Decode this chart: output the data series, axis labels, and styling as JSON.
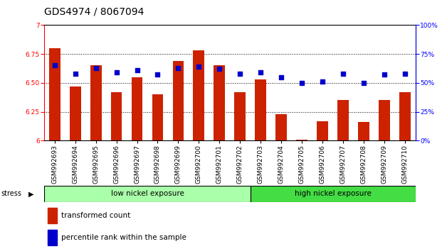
{
  "title": "GDS4974 / 8067094",
  "samples": [
    "GSM992693",
    "GSM992694",
    "GSM992695",
    "GSM992696",
    "GSM992697",
    "GSM992698",
    "GSM992699",
    "GSM992700",
    "GSM992701",
    "GSM992702",
    "GSM992703",
    "GSM992704",
    "GSM992705",
    "GSM992706",
    "GSM992707",
    "GSM992708",
    "GSM992709",
    "GSM992710"
  ],
  "bar_values": [
    6.8,
    6.47,
    6.65,
    6.42,
    6.55,
    6.4,
    6.69,
    6.78,
    6.65,
    6.42,
    6.53,
    6.23,
    6.01,
    6.17,
    6.35,
    6.16,
    6.35,
    6.42
  ],
  "percentile_values": [
    65,
    58,
    63,
    59,
    61,
    57,
    63,
    64,
    62,
    58,
    59,
    55,
    50,
    51,
    58,
    50,
    57,
    58
  ],
  "bar_color": "#cc2200",
  "dot_color": "#0000cc",
  "ylim_left": [
    6.0,
    7.0
  ],
  "ylim_right": [
    0,
    100
  ],
  "yticks_left": [
    6.0,
    6.25,
    6.5,
    6.75,
    7.0
  ],
  "yticks_right": [
    0,
    25,
    50,
    75,
    100
  ],
  "hlines": [
    6.25,
    6.5,
    6.75
  ],
  "group1_label": "low nickel exposure",
  "group1_count": 10,
  "group2_label": "high nickel exposure",
  "group2_count": 8,
  "stress_label": "stress",
  "group1_color": "#aaffaa",
  "group2_color": "#44dd44",
  "legend_bar_label": "transformed count",
  "legend_dot_label": "percentile rank within the sample",
  "background_color": "#ffffff",
  "plot_bg": "#ffffff",
  "title_fontsize": 10,
  "tick_fontsize": 6.5,
  "label_fontsize": 8
}
